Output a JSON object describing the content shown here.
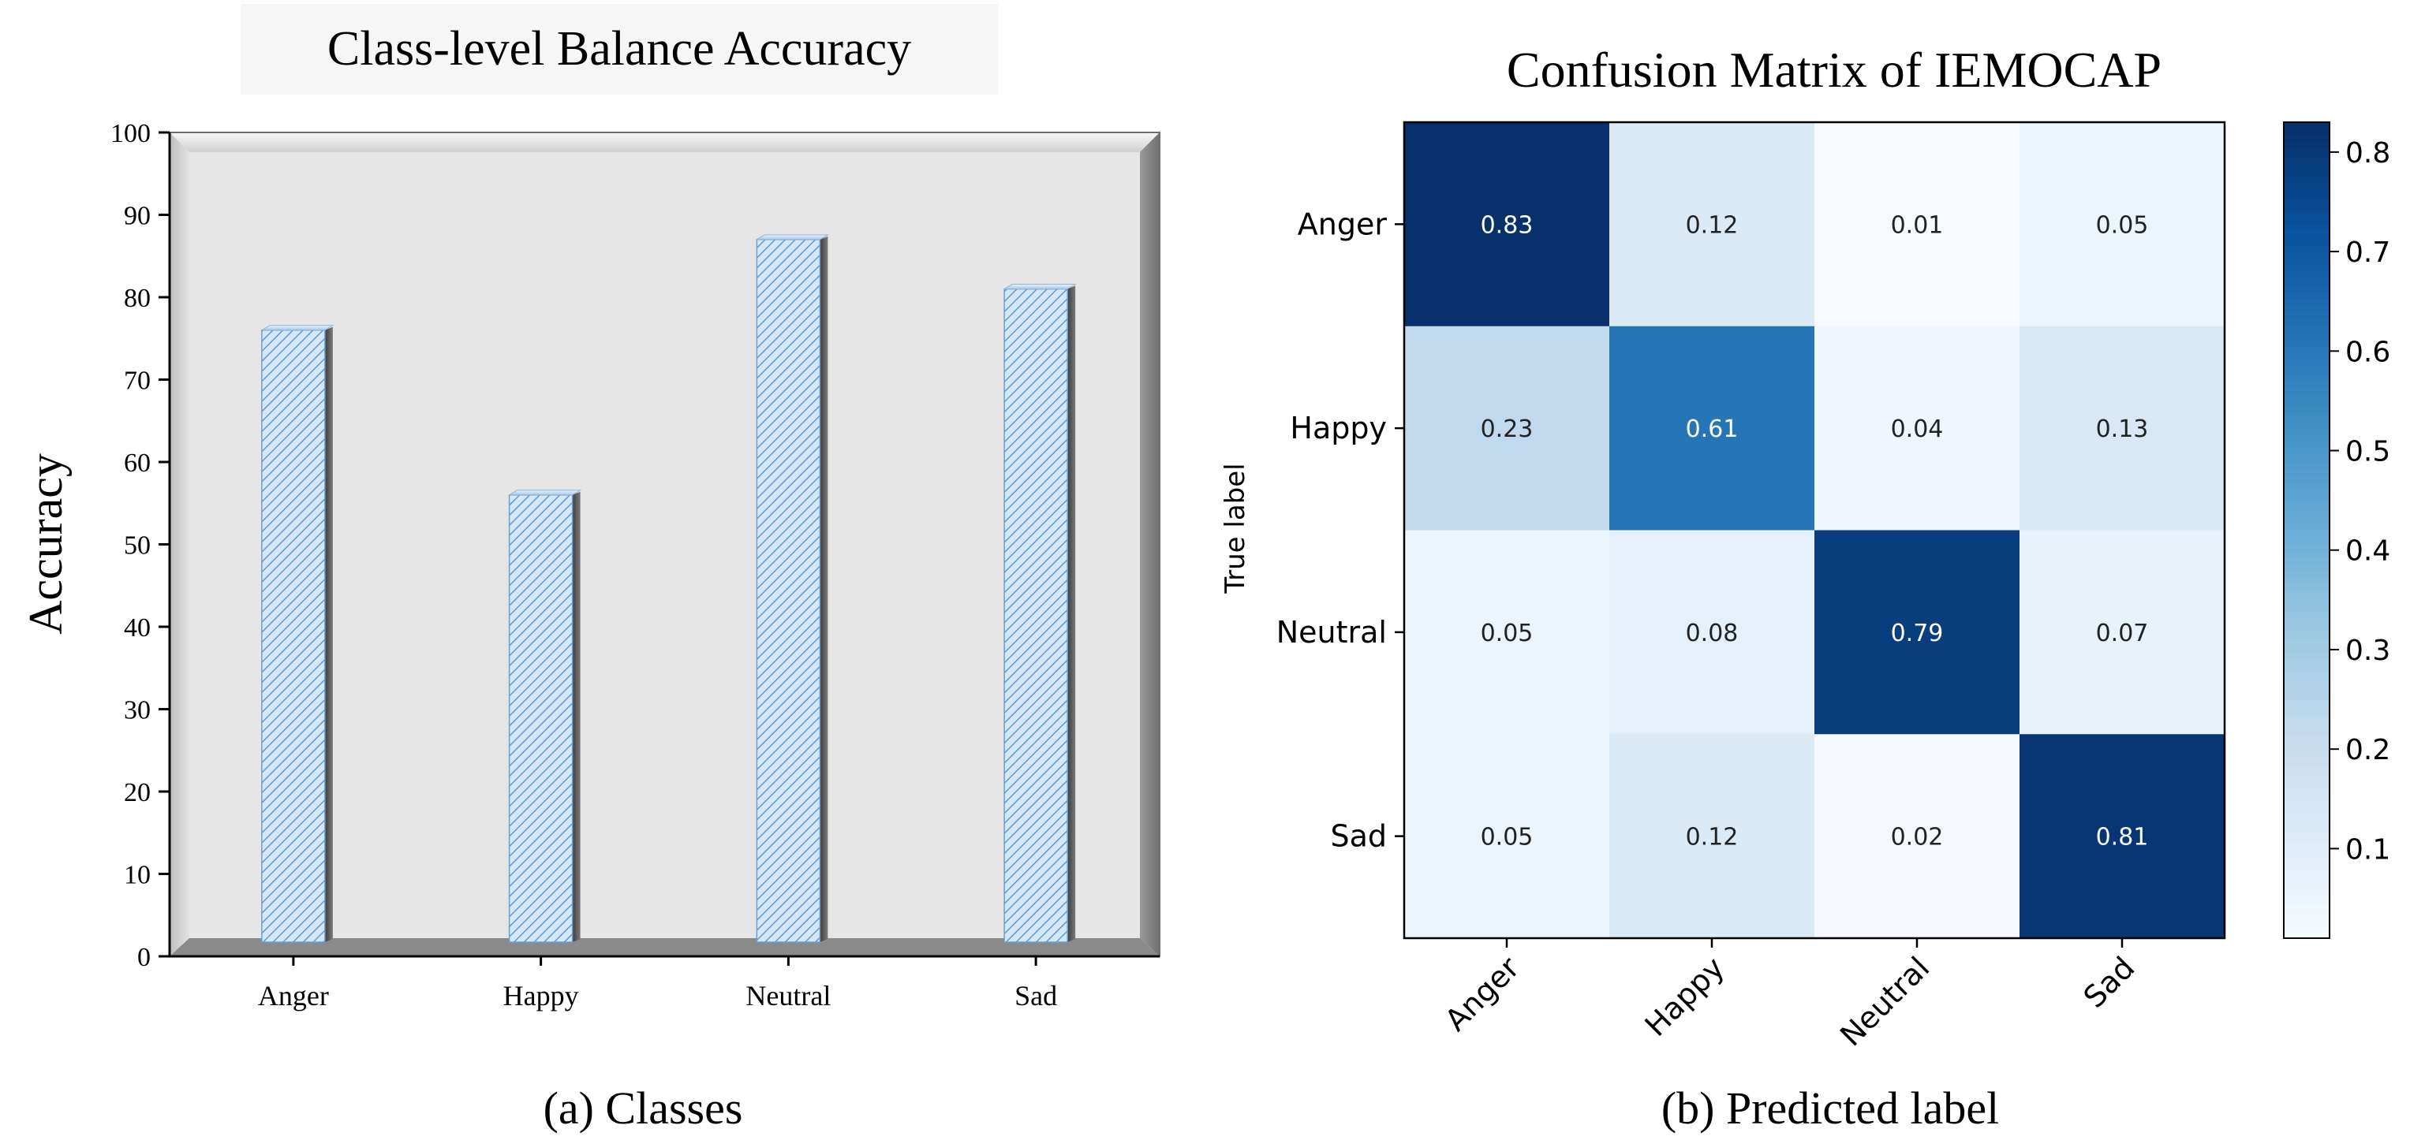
{
  "chart_data": [
    {
      "type": "bar",
      "title": "Class-level Balance Accuracy",
      "xlabel": "(a) Classes",
      "ylabel": "Accuracy",
      "categories": [
        "Anger",
        "Happy",
        "Neutral",
        "Sad"
      ],
      "values": [
        76,
        56,
        87,
        81
      ],
      "ylim": [
        0,
        100
      ],
      "yticks": [
        0,
        10,
        20,
        30,
        40,
        50,
        60,
        70,
        80,
        90,
        100
      ],
      "colors": {
        "bar": "#cfe3f6",
        "hatch": "#5a9bd5",
        "plot_bg": "#e6e6e6",
        "frame": "#8c8c8c"
      }
    },
    {
      "type": "heatmap",
      "title": "Confusion Matrix of IEMOCAP",
      "xlabel": "(b) Predicted label",
      "ylabel": "True label",
      "rows": [
        "Anger",
        "Happy",
        "Neutral",
        "Sad"
      ],
      "cols": [
        "Anger",
        "Happy",
        "Neutral",
        "Sad"
      ],
      "values": [
        [
          0.83,
          0.12,
          0.01,
          0.05
        ],
        [
          0.23,
          0.61,
          0.04,
          0.13
        ],
        [
          0.05,
          0.08,
          0.79,
          0.07
        ],
        [
          0.05,
          0.12,
          0.02,
          0.81
        ]
      ],
      "colorbar": {
        "min": 0.01,
        "max": 0.83,
        "ticks": [
          0.1,
          0.2,
          0.3,
          0.4,
          0.5,
          0.6,
          0.7,
          0.8
        ]
      },
      "colormap": "Blues"
    }
  ]
}
